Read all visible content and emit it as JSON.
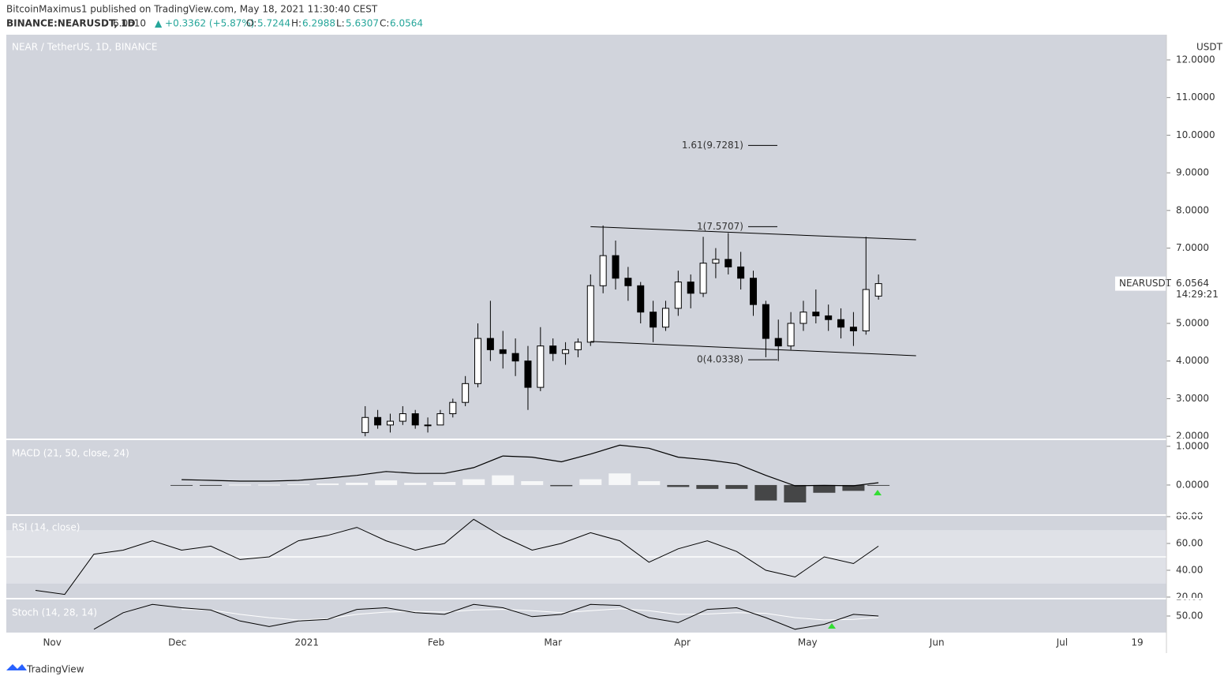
{
  "header": {
    "publisher": "BitcoinMaximus1 published on TradingView.com, May 18, 2021 11:30:40 CEST",
    "symbol": "BINANCE:NEARUSDT, 1D",
    "last": "6.0610",
    "change": "▲ +0.3362 (+5.87%)",
    "o_label": "O:",
    "o": "5.7244",
    "h_label": "H:",
    "h": "6.2988",
    "l_label": "L:",
    "l": "5.6307",
    "c_label": "C:",
    "c": "6.0564"
  },
  "footer": {
    "brand": "TradingView"
  },
  "chart_data": [
    {
      "type": "candlestick",
      "title": "NEAR / TetherUS, 1D, BINANCE",
      "axis_title": "USDT",
      "color_up": "#ffffff",
      "color_down": "#000000",
      "xlim": [
        "2020-10-21",
        "2021-07-26"
      ],
      "xticks": [
        {
          "value": "2020-11-01",
          "label": "Nov"
        },
        {
          "value": "2020-12-01",
          "label": "Dec"
        },
        {
          "value": "2021-01-01",
          "label": "2021"
        },
        {
          "value": "2021-02-01",
          "label": "Feb"
        },
        {
          "value": "2021-03-01",
          "label": "Mar"
        },
        {
          "value": "2021-04-01",
          "label": "Apr"
        },
        {
          "value": "2021-05-01",
          "label": "May"
        },
        {
          "value": "2021-06-01",
          "label": "Jun"
        },
        {
          "value": "2021-07-01",
          "label": "Jul"
        },
        {
          "value": "2021-07-19",
          "label": "19"
        }
      ],
      "ylim": [
        1.94,
        12.67
      ],
      "yticks": [
        {
          "value": 2,
          "label": "2.0000"
        },
        {
          "value": 3,
          "label": "3.0000"
        },
        {
          "value": 4,
          "label": "4.0000"
        },
        {
          "value": 5,
          "label": "5.0000"
        },
        {
          "value": 6,
          "label": "6.0000"
        },
        {
          "value": 7,
          "label": "7.0000"
        },
        {
          "value": 8,
          "label": "8.0000"
        },
        {
          "value": 9,
          "label": "9.0000"
        },
        {
          "value": 10,
          "label": "10.0000"
        },
        {
          "value": 11,
          "label": "11.0000"
        },
        {
          "value": 12,
          "label": "12.0000"
        }
      ],
      "x": [
        "2021-01-15",
        "2021-01-18",
        "2021-01-21",
        "2021-01-24",
        "2021-01-27",
        "2021-01-30",
        "2021-02-02",
        "2021-02-05",
        "2021-02-08",
        "2021-02-11",
        "2021-02-14",
        "2021-02-17",
        "2021-02-20",
        "2021-02-23",
        "2021-02-26",
        "2021-03-01",
        "2021-03-04",
        "2021-03-07",
        "2021-03-10",
        "2021-03-13",
        "2021-03-16",
        "2021-03-19",
        "2021-03-22",
        "2021-03-25",
        "2021-03-28",
        "2021-03-31",
        "2021-04-03",
        "2021-04-06",
        "2021-04-09",
        "2021-04-12",
        "2021-04-15",
        "2021-04-18",
        "2021-04-21",
        "2021-04-24",
        "2021-04-27",
        "2021-04-30",
        "2021-05-03",
        "2021-05-06",
        "2021-05-09",
        "2021-05-12",
        "2021-05-15",
        "2021-05-18"
      ],
      "open": [
        2.1,
        2.5,
        2.3,
        2.4,
        2.6,
        2.3,
        2.3,
        2.6,
        2.9,
        3.4,
        4.6,
        4.3,
        4.2,
        4.0,
        3.3,
        4.4,
        4.2,
        4.3,
        4.5,
        6.0,
        6.8,
        6.2,
        6.0,
        5.3,
        4.9,
        5.4,
        6.1,
        5.8,
        6.6,
        6.7,
        6.5,
        6.2,
        5.5,
        4.6,
        4.4,
        5.0,
        5.3,
        5.2,
        5.1,
        4.9,
        4.8,
        5.7244
      ],
      "high": [
        2.8,
        2.7,
        2.6,
        2.8,
        2.7,
        2.5,
        2.7,
        3.0,
        3.6,
        5.0,
        5.6,
        4.8,
        4.6,
        4.4,
        4.9,
        4.6,
        4.5,
        4.6,
        6.3,
        7.6,
        7.2,
        6.5,
        6.1,
        5.6,
        5.6,
        6.4,
        6.3,
        7.3,
        7.0,
        7.4,
        6.9,
        6.4,
        5.6,
        5.1,
        5.3,
        5.6,
        5.9,
        5.5,
        5.4,
        5.3,
        7.3,
        6.2988
      ],
      "low": [
        2.0,
        2.2,
        2.1,
        2.3,
        2.2,
        2.1,
        2.3,
        2.5,
        2.8,
        3.3,
        4.0,
        3.8,
        3.6,
        2.7,
        3.2,
        4.0,
        3.9,
        4.1,
        4.4,
        5.8,
        5.9,
        5.6,
        5.0,
        4.5,
        4.8,
        5.2,
        5.4,
        5.7,
        6.2,
        6.3,
        5.9,
        5.2,
        4.1,
        4.0,
        4.3,
        4.8,
        5.0,
        4.8,
        4.6,
        4.4,
        4.7,
        5.6307
      ],
      "close": [
        2.5,
        2.3,
        2.4,
        2.6,
        2.3,
        2.3,
        2.6,
        2.9,
        3.4,
        4.6,
        4.3,
        4.2,
        4.0,
        3.3,
        4.4,
        4.2,
        4.3,
        4.5,
        6.0,
        6.8,
        6.2,
        6.0,
        5.3,
        4.9,
        5.4,
        6.1,
        5.8,
        6.6,
        6.7,
        6.5,
        6.2,
        5.5,
        4.6,
        4.4,
        5.0,
        5.3,
        5.2,
        5.1,
        4.9,
        4.8,
        5.9,
        6.0564
      ],
      "channel": [
        {
          "x": [
            "2021-03-10",
            "2021-05-27"
          ],
          "values": [
            7.57,
            7.22
          ]
        },
        {
          "x": [
            "2021-03-10",
            "2021-05-27"
          ],
          "values": [
            4.52,
            4.14
          ]
        }
      ],
      "fib_levels": [
        {
          "label": "1.61(9.7281)",
          "value": 9.7281
        },
        {
          "label": "1(7.5707)",
          "value": 7.5707
        },
        {
          "label": "0(4.0338)",
          "value": 4.0338
        }
      ],
      "last_price": {
        "name": "NEARUSDT",
        "value": 6.0564,
        "label": "6.0564",
        "countdown": "14:29:21"
      }
    },
    {
      "type": "macd",
      "title": "MACD (21, 50, close, 24)",
      "color": "#000000",
      "pos_color": "#ffffff",
      "neg_color": "#222222",
      "ylim": [
        -0.755,
        1.16
      ],
      "yticks": [
        {
          "value": 0,
          "label": "0.0000"
        },
        {
          "value": 1,
          "label": "1.0000"
        }
      ],
      "x": [
        "2020-10-28",
        "2020-11-04",
        "2020-11-11",
        "2020-11-18",
        "2020-11-25",
        "2020-12-02",
        "2020-12-09",
        "2020-12-16",
        "2020-12-23",
        "2020-12-30",
        "2021-01-06",
        "2021-01-13",
        "2021-01-20",
        "2021-01-27",
        "2021-02-03",
        "2021-02-10",
        "2021-02-17",
        "2021-02-24",
        "2021-03-03",
        "2021-03-10",
        "2021-03-17",
        "2021-03-24",
        "2021-03-31",
        "2021-04-07",
        "2021-04-14",
        "2021-04-21",
        "2021-04-28",
        "2021-05-05",
        "2021-05-12",
        "2021-05-18"
      ],
      "values": [
        null,
        null,
        null,
        null,
        null,
        0.14,
        0.12,
        0.1,
        0.1,
        0.12,
        0.18,
        0.25,
        0.35,
        0.3,
        0.3,
        0.45,
        0.75,
        0.72,
        0.6,
        0.8,
        1.03,
        0.95,
        0.72,
        0.65,
        0.55,
        0.25,
        -0.02,
        -0.01,
        -0.02,
        0.06
      ],
      "histogram": [
        null,
        null,
        null,
        null,
        null,
        -0.02,
        -0.01,
        0.01,
        0.01,
        0.02,
        0.04,
        0.06,
        0.12,
        0.06,
        0.08,
        0.15,
        0.25,
        0.1,
        -0.03,
        0.15,
        0.3,
        0.1,
        -0.05,
        -0.1,
        -0.1,
        -0.4,
        -0.45,
        -0.2,
        -0.15,
        -0.02
      ]
    },
    {
      "type": "rsi",
      "title": "RSI (14, close)",
      "color": "#000000",
      "ylim": [
        19.4,
        80.6
      ],
      "yticks": [
        {
          "value": 20,
          "label": "20.00"
        },
        {
          "value": 40,
          "label": "40.00"
        },
        {
          "value": 60,
          "label": "60.00"
        },
        {
          "value": 80,
          "label": "80.00"
        }
      ],
      "band": [
        30,
        70
      ],
      "midline": 50,
      "x": [
        "2020-10-28",
        "2020-11-04",
        "2020-11-11",
        "2020-11-18",
        "2020-11-25",
        "2020-12-02",
        "2020-12-09",
        "2020-12-16",
        "2020-12-23",
        "2020-12-30",
        "2021-01-06",
        "2021-01-13",
        "2021-01-20",
        "2021-01-27",
        "2021-02-03",
        "2021-02-10",
        "2021-02-17",
        "2021-02-24",
        "2021-03-03",
        "2021-03-10",
        "2021-03-17",
        "2021-03-24",
        "2021-03-31",
        "2021-04-07",
        "2021-04-14",
        "2021-04-21",
        "2021-04-28",
        "2021-05-05",
        "2021-05-12",
        "2021-05-18"
      ],
      "values": [
        25,
        22,
        52,
        55,
        62,
        55,
        58,
        48,
        50,
        62,
        66,
        72,
        62,
        55,
        60,
        78,
        65,
        55,
        60,
        68,
        62,
        46,
        56,
        62,
        54,
        40,
        35,
        50,
        45,
        58
      ]
    },
    {
      "type": "stoch",
      "title": "Stoch (14, 28, 14)",
      "color": "#000000",
      "signal_color": "#ffffff",
      "ylim": [
        0,
        100
      ],
      "yticks": [
        {
          "value": 50,
          "label": "50.00"
        }
      ],
      "x": [
        "2020-10-28",
        "2020-11-04",
        "2020-11-11",
        "2020-11-18",
        "2020-11-25",
        "2020-12-02",
        "2020-12-09",
        "2020-12-16",
        "2020-12-23",
        "2020-12-30",
        "2021-01-06",
        "2021-01-13",
        "2021-01-20",
        "2021-01-27",
        "2021-02-03",
        "2021-02-10",
        "2021-02-17",
        "2021-02-24",
        "2021-03-03",
        "2021-03-10",
        "2021-03-17",
        "2021-03-24",
        "2021-03-31",
        "2021-04-07",
        "2021-04-14",
        "2021-04-21",
        "2021-04-28",
        "2021-05-05",
        "2021-05-12",
        "2021-05-18"
      ],
      "values": [
        null,
        null,
        10,
        60,
        85,
        75,
        68,
        35,
        18,
        35,
        40,
        70,
        75,
        60,
        55,
        85,
        75,
        48,
        55,
        85,
        82,
        45,
        30,
        70,
        75,
        45,
        10,
        25,
        55,
        50
      ],
      "signal": [
        null,
        null,
        null,
        null,
        null,
        70,
        68,
        55,
        45,
        38,
        42,
        55,
        62,
        64,
        62,
        68,
        70,
        66,
        60,
        66,
        72,
        66,
        55,
        56,
        60,
        58,
        45,
        38,
        40,
        46
      ]
    }
  ]
}
